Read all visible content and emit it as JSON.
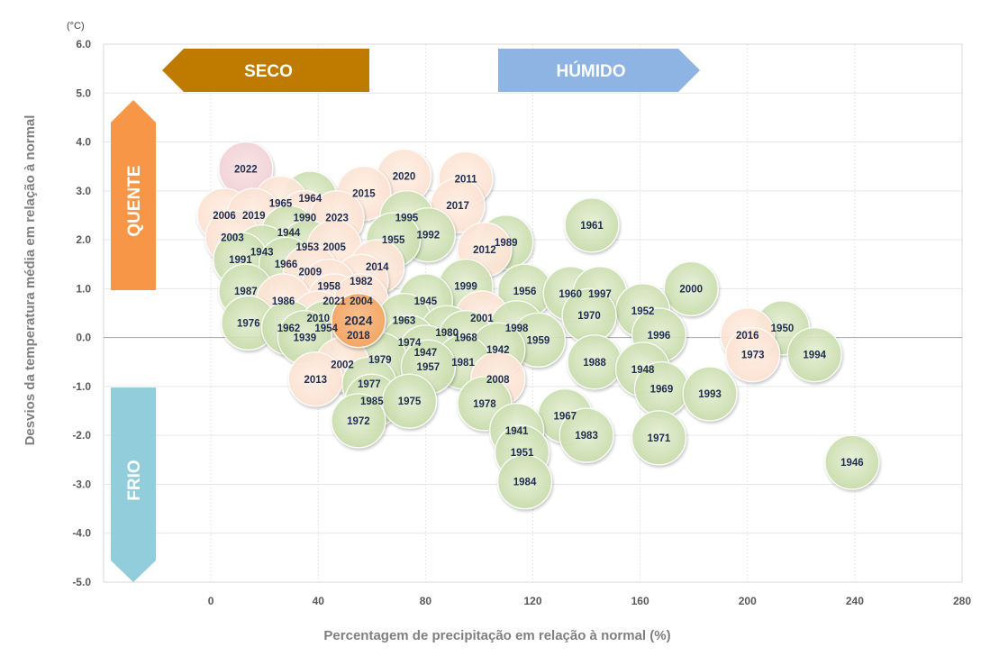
{
  "chart_data": {
    "type": "scatter",
    "xlabel": "Percentagem de precipitação em relação à normal (%)",
    "ylabel": "Desvios da temperatura média em relação à normal",
    "yunit": "(°C)",
    "xlim": [
      -40,
      280
    ],
    "ylim": [
      -5,
      6
    ],
    "xticks": [
      0,
      40,
      80,
      120,
      160,
      200,
      240,
      280
    ],
    "yticks": [
      6,
      5,
      4,
      3,
      2,
      1,
      0,
      -1,
      -2,
      -3,
      -4,
      -5
    ],
    "ytick_labels": [
      "6.0",
      "5.0",
      "4.0",
      "3.0",
      "2.0",
      "1.0",
      "0.0",
      "-1.0",
      "-2.0",
      "-3.0",
      "-4.0",
      "-5.0"
    ],
    "grid": true,
    "annotations": {
      "seco": "SECO",
      "humido": "HÚMIDO",
      "quente": "QUENTE",
      "frio": "FRIO"
    },
    "colors": {
      "cold_green": "#c6dba8",
      "warm_peach": "#fce0cf",
      "year_2022": "#f2cfd3",
      "year_2024": "#f3a565",
      "seco_arrow": "#bf7b00",
      "humido_arrow": "#8eb4e3",
      "quente_arrow": "#f79646",
      "frio_arrow": "#92cddc"
    },
    "points": [
      {
        "year": "2022",
        "x": 13,
        "y": 3.45,
        "group": "pink"
      },
      {
        "year": "2020",
        "x": 72,
        "y": 3.3,
        "group": "warm"
      },
      {
        "year": "2011",
        "x": 95,
        "y": 3.25,
        "group": "warm"
      },
      {
        "year": "2015",
        "x": 57,
        "y": 2.95,
        "group": "warm"
      },
      {
        "year": "1964",
        "x": 37,
        "y": 2.85,
        "group": "green"
      },
      {
        "year": "1965",
        "x": 26,
        "y": 2.75,
        "group": "warm"
      },
      {
        "year": "2017",
        "x": 92,
        "y": 2.7,
        "group": "warm"
      },
      {
        "year": "2006",
        "x": 5,
        "y": 2.5,
        "group": "warm"
      },
      {
        "year": "2019",
        "x": 16,
        "y": 2.5,
        "group": "warm"
      },
      {
        "year": "1990",
        "x": 35,
        "y": 2.45,
        "group": "warm"
      },
      {
        "year": "2023",
        "x": 47,
        "y": 2.45,
        "group": "warm"
      },
      {
        "year": "1995",
        "x": 73,
        "y": 2.45,
        "group": "green"
      },
      {
        "year": "1961",
        "x": 142,
        "y": 2.3,
        "group": "green"
      },
      {
        "year": "1944",
        "x": 29,
        "y": 2.15,
        "group": "green"
      },
      {
        "year": "1992",
        "x": 81,
        "y": 2.1,
        "group": "green"
      },
      {
        "year": "2003",
        "x": 8,
        "y": 2.05,
        "group": "warm"
      },
      {
        "year": "1955",
        "x": 68,
        "y": 2.0,
        "group": "green"
      },
      {
        "year": "1989",
        "x": 110,
        "y": 1.95,
        "group": "green"
      },
      {
        "year": "1953",
        "x": 36,
        "y": 1.85,
        "group": "green"
      },
      {
        "year": "2005",
        "x": 46,
        "y": 1.85,
        "group": "warm"
      },
      {
        "year": "2012",
        "x": 102,
        "y": 1.8,
        "group": "warm"
      },
      {
        "year": "1943",
        "x": 19,
        "y": 1.75,
        "group": "green"
      },
      {
        "year": "1991",
        "x": 11,
        "y": 1.6,
        "group": "green"
      },
      {
        "year": "1966",
        "x": 28,
        "y": 1.5,
        "group": "green"
      },
      {
        "year": "2014",
        "x": 62,
        "y": 1.45,
        "group": "warm"
      },
      {
        "year": "2009",
        "x": 37,
        "y": 1.35,
        "group": "warm"
      },
      {
        "year": "1982",
        "x": 56,
        "y": 1.15,
        "group": "warm"
      },
      {
        "year": "1958",
        "x": 44,
        "y": 1.05,
        "group": "warm"
      },
      {
        "year": "1999",
        "x": 95,
        "y": 1.05,
        "group": "green"
      },
      {
        "year": "1987",
        "x": 13,
        "y": 0.95,
        "group": "green"
      },
      {
        "year": "1956",
        "x": 117,
        "y": 0.95,
        "group": "green"
      },
      {
        "year": "1960",
        "x": 134,
        "y": 0.9,
        "group": "green"
      },
      {
        "year": "1997",
        "x": 145,
        "y": 0.9,
        "group": "green"
      },
      {
        "year": "2000",
        "x": 179,
        "y": 1.0,
        "group": "green"
      },
      {
        "year": "1986",
        "x": 27,
        "y": 0.75,
        "group": "warm"
      },
      {
        "year": "2021",
        "x": 46,
        "y": 0.75,
        "group": "warm"
      },
      {
        "year": "2004",
        "x": 56,
        "y": 0.75,
        "group": "warm"
      },
      {
        "year": "1945",
        "x": 80,
        "y": 0.75,
        "group": "green"
      },
      {
        "year": "1952",
        "x": 161,
        "y": 0.55,
        "group": "green"
      },
      {
        "year": "1970",
        "x": 141,
        "y": 0.45,
        "group": "green"
      },
      {
        "year": "2010",
        "x": 40,
        "y": 0.4,
        "group": "warm"
      },
      {
        "year": "1963",
        "x": 72,
        "y": 0.35,
        "group": "green"
      },
      {
        "year": "2001",
        "x": 101,
        "y": 0.4,
        "group": "warm"
      },
      {
        "year": "1976",
        "x": 14,
        "y": 0.3,
        "group": "green"
      },
      {
        "year": "1962",
        "x": 29,
        "y": 0.2,
        "group": "green"
      },
      {
        "year": "1954",
        "x": 43,
        "y": 0.2,
        "group": "green"
      },
      {
        "year": "2024",
        "x": 55,
        "y": 0.35,
        "group": "highlight"
      },
      {
        "year": "1998",
        "x": 114,
        "y": 0.2,
        "group": "green"
      },
      {
        "year": "2018",
        "x": 55,
        "y": 0.05,
        "group": "warm"
      },
      {
        "year": "1950",
        "x": 213,
        "y": 0.2,
        "group": "green"
      },
      {
        "year": "1980",
        "x": 88,
        "y": 0.1,
        "group": "green"
      },
      {
        "year": "2016",
        "x": 200,
        "y": 0.05,
        "group": "warm"
      },
      {
        "year": "1996",
        "x": 167,
        "y": 0.05,
        "group": "green"
      },
      {
        "year": "1939",
        "x": 35,
        "y": 0.0,
        "group": "green"
      },
      {
        "year": "1968",
        "x": 95,
        "y": 0.0,
        "group": "green"
      },
      {
        "year": "1974",
        "x": 74,
        "y": -0.1,
        "group": "green"
      },
      {
        "year": "1959",
        "x": 122,
        "y": -0.05,
        "group": "green"
      },
      {
        "year": "1942",
        "x": 107,
        "y": -0.25,
        "group": "green"
      },
      {
        "year": "1947",
        "x": 80,
        "y": -0.3,
        "group": "green"
      },
      {
        "year": "1973",
        "x": 202,
        "y": -0.35,
        "group": "warm"
      },
      {
        "year": "1994",
        "x": 225,
        "y": -0.35,
        "group": "green"
      },
      {
        "year": "1979",
        "x": 63,
        "y": -0.45,
        "group": "green"
      },
      {
        "year": "1981",
        "x": 94,
        "y": -0.5,
        "group": "green"
      },
      {
        "year": "1988",
        "x": 143,
        "y": -0.5,
        "group": "green"
      },
      {
        "year": "2002",
        "x": 49,
        "y": -0.55,
        "group": "warm"
      },
      {
        "year": "1957",
        "x": 81,
        "y": -0.6,
        "group": "green"
      },
      {
        "year": "1948",
        "x": 161,
        "y": -0.65,
        "group": "green"
      },
      {
        "year": "2013",
        "x": 39,
        "y": -0.85,
        "group": "warm"
      },
      {
        "year": "1977",
        "x": 59,
        "y": -0.95,
        "group": "green"
      },
      {
        "year": "2008",
        "x": 107,
        "y": -0.85,
        "group": "warm"
      },
      {
        "year": "1969",
        "x": 168,
        "y": -1.05,
        "group": "green"
      },
      {
        "year": "1993",
        "x": 186,
        "y": -1.15,
        "group": "green"
      },
      {
        "year": "1985",
        "x": 60,
        "y": -1.3,
        "group": "green"
      },
      {
        "year": "1975",
        "x": 74,
        "y": -1.3,
        "group": "green"
      },
      {
        "year": "1978",
        "x": 102,
        "y": -1.35,
        "group": "green"
      },
      {
        "year": "1967",
        "x": 132,
        "y": -1.6,
        "group": "green"
      },
      {
        "year": "1972",
        "x": 55,
        "y": -1.7,
        "group": "green"
      },
      {
        "year": "1941",
        "x": 114,
        "y": -1.9,
        "group": "green"
      },
      {
        "year": "1983",
        "x": 140,
        "y": -2.0,
        "group": "green"
      },
      {
        "year": "1971",
        "x": 167,
        "y": -2.05,
        "group": "green"
      },
      {
        "year": "1951",
        "x": 116,
        "y": -2.35,
        "group": "green"
      },
      {
        "year": "1946",
        "x": 239,
        "y": -2.55,
        "group": "green"
      },
      {
        "year": "1984",
        "x": 117,
        "y": -2.95,
        "group": "green"
      }
    ]
  }
}
